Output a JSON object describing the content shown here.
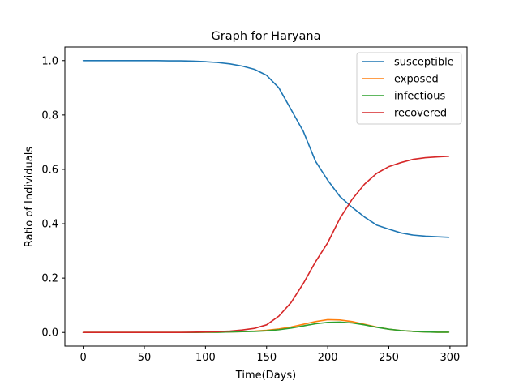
{
  "chart_data": {
    "type": "line",
    "title": "Graph for Haryana",
    "xlabel": "Time(Days)",
    "ylabel": "Ratio of Individuals",
    "xlim": [
      -15,
      314
    ],
    "ylim": [
      -0.05,
      1.05
    ],
    "xticks": [
      0,
      50,
      100,
      150,
      200,
      250,
      300
    ],
    "yticks": [
      0.0,
      0.2,
      0.4,
      0.6,
      0.8,
      1.0
    ],
    "ytick_labels": [
      "0.0",
      "0.2",
      "0.4",
      "0.6",
      "0.8",
      "1.0"
    ],
    "legend_position": "top-right",
    "grid": false,
    "x": [
      0,
      10,
      20,
      30,
      40,
      50,
      60,
      70,
      80,
      90,
      100,
      110,
      120,
      130,
      140,
      150,
      160,
      170,
      180,
      190,
      200,
      210,
      220,
      230,
      240,
      250,
      260,
      270,
      280,
      290,
      299
    ],
    "series": [
      {
        "name": "susceptible",
        "color": "#1f77b4",
        "values": [
          1.0,
          1.0,
          1.0,
          1.0,
          1.0,
          1.0,
          1.0,
          0.999,
          0.999,
          0.998,
          0.996,
          0.993,
          0.988,
          0.98,
          0.968,
          0.946,
          0.9,
          0.82,
          0.74,
          0.63,
          0.56,
          0.5,
          0.46,
          0.425,
          0.395,
          0.38,
          0.366,
          0.358,
          0.354,
          0.352,
          0.35
        ]
      },
      {
        "name": "exposed",
        "color": "#ff7f0e",
        "values": [
          0.0,
          0.0,
          0.0,
          0.0,
          0.0,
          0.0,
          0.0,
          0.0,
          0.0,
          0.0,
          0.001,
          0.001,
          0.002,
          0.003,
          0.005,
          0.008,
          0.013,
          0.02,
          0.03,
          0.04,
          0.047,
          0.046,
          0.04,
          0.03,
          0.02,
          0.012,
          0.007,
          0.004,
          0.002,
          0.001,
          0.001
        ]
      },
      {
        "name": "infectious",
        "color": "#2ca02c",
        "values": [
          0.0,
          0.0,
          0.0,
          0.0,
          0.0,
          0.0,
          0.0,
          0.0,
          0.0,
          0.0,
          0.001,
          0.001,
          0.002,
          0.003,
          0.004,
          0.006,
          0.01,
          0.016,
          0.024,
          0.032,
          0.037,
          0.038,
          0.035,
          0.028,
          0.019,
          0.012,
          0.007,
          0.004,
          0.002,
          0.001,
          0.001
        ]
      },
      {
        "name": "recovered",
        "color": "#d62728",
        "values": [
          0.0,
          0.0,
          0.0,
          0.0,
          0.0,
          0.0,
          0.0,
          0.0,
          0.0,
          0.001,
          0.002,
          0.003,
          0.005,
          0.009,
          0.015,
          0.028,
          0.06,
          0.11,
          0.18,
          0.26,
          0.33,
          0.42,
          0.49,
          0.545,
          0.585,
          0.61,
          0.625,
          0.637,
          0.643,
          0.646,
          0.648
        ]
      }
    ]
  }
}
